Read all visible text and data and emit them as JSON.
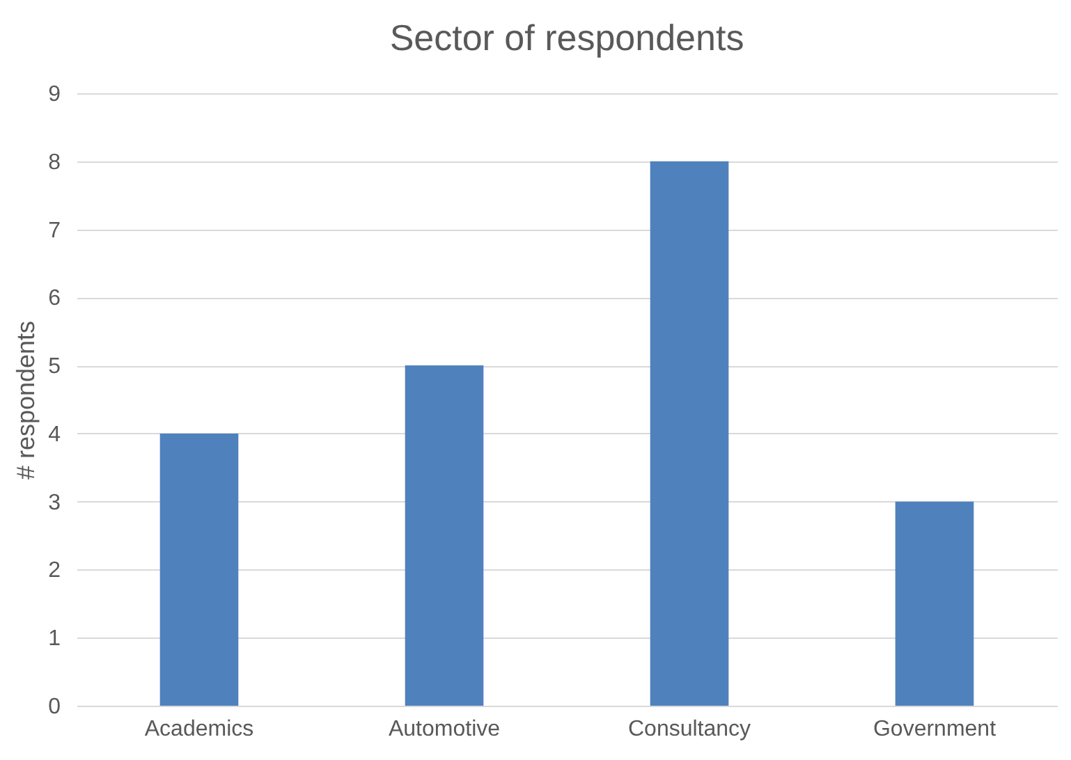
{
  "chart_data": {
    "type": "bar",
    "title": "Sector of respondents",
    "ylabel": "# respondents",
    "categories": [
      "Academics",
      "Automotive",
      "Consultancy",
      "Government"
    ],
    "values": [
      4,
      5,
      8,
      3
    ],
    "color": "#4f81bd",
    "ylim": [
      0,
      9
    ],
    "yticks": [
      0,
      1,
      2,
      3,
      4,
      5,
      6,
      7,
      8,
      9
    ],
    "grid": "y"
  }
}
